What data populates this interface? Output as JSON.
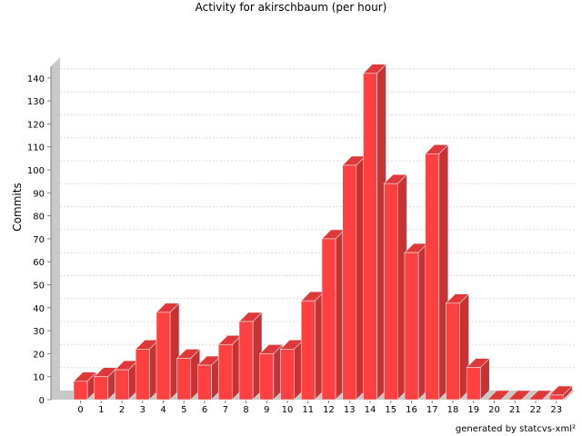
{
  "chart_data": {
    "type": "bar",
    "title": "Activity for akirschbaum (per hour)",
    "xlabel": "",
    "ylabel": "Commits",
    "categories": [
      "0",
      "1",
      "2",
      "3",
      "4",
      "5",
      "6",
      "7",
      "8",
      "9",
      "10",
      "11",
      "12",
      "13",
      "14",
      "15",
      "16",
      "17",
      "18",
      "19",
      "20",
      "21",
      "22",
      "23"
    ],
    "values": [
      8,
      10,
      13,
      22,
      38,
      18,
      15,
      24,
      34,
      20,
      22,
      43,
      70,
      102,
      142,
      94,
      64,
      107,
      42,
      14,
      0,
      0,
      0,
      2
    ],
    "ylim": [
      0,
      145
    ],
    "yticks": [
      0,
      10,
      20,
      30,
      40,
      50,
      60,
      70,
      80,
      90,
      100,
      110,
      120,
      130,
      140
    ],
    "grid": true,
    "three_d": true,
    "colors": {
      "bar_front": "#ff4040",
      "bar_side": "#c83232",
      "bar_top": "#e03838",
      "bar_stroke": "#e8e8e8",
      "wall": "#c8c8c8",
      "grid": "#dcdcdc"
    }
  },
  "footer": "generated by statcvs-xml²"
}
